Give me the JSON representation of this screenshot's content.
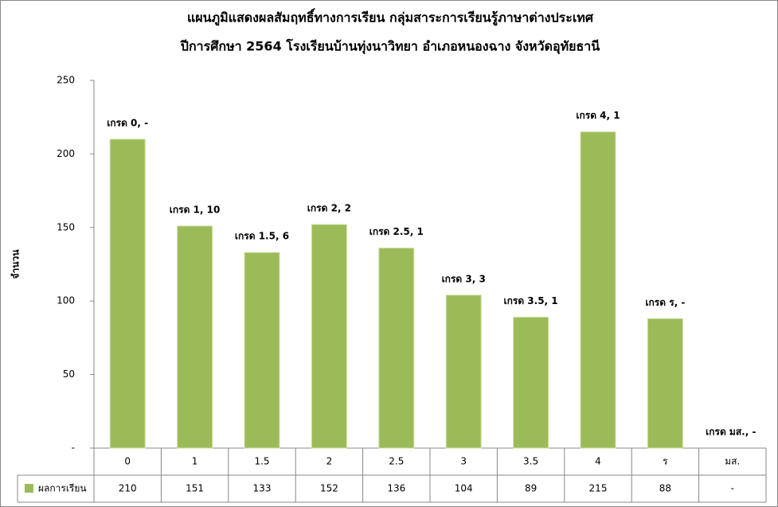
{
  "chart_data": {
    "type": "bar",
    "title": "แผนภูมิแสดงผลสัมฤทธิ์ทางการเรียน กลุ่มสาระการเรียนรู้ภาษาต่างประเทศ",
    "subtitle": "ปีการศึกษา 2564 โรงเรียนบ้านทุ่งนาวิทยา อำเภอหนองฉาง จังหวัดอุทัยธานี",
    "y_label": "จำนวน",
    "categories": [
      "0",
      "1",
      "1.5",
      "2",
      "2.5",
      "3",
      "3.5",
      "4",
      "ร",
      "มส."
    ],
    "series": [
      {
        "name": "ผลการเรียน",
        "color": "#9bbb59",
        "values": [
          210,
          151,
          133,
          152,
          136,
          104,
          89,
          215,
          88,
          0
        ],
        "value_labels": [
          "210",
          "151",
          "133",
          "152",
          "136",
          "104",
          "89",
          "215",
          "88",
          "-"
        ]
      }
    ],
    "annotations": [
      "เกรด 0, -",
      "เกรด 1, 10",
      "เกรด 1.5, 6",
      "เกรด 2, 2",
      "เกรด 2.5, 1",
      "เกรด 3, 3",
      "เกรด 3.5, 1",
      "เกรด 4, 1",
      "เกรด ร, -",
      "เกรด มส., -"
    ],
    "ylim": [
      0,
      250
    ],
    "yticks": [
      {
        "value": 0,
        "label": "-"
      },
      50,
      100,
      150,
      200,
      250
    ],
    "grid": false
  }
}
